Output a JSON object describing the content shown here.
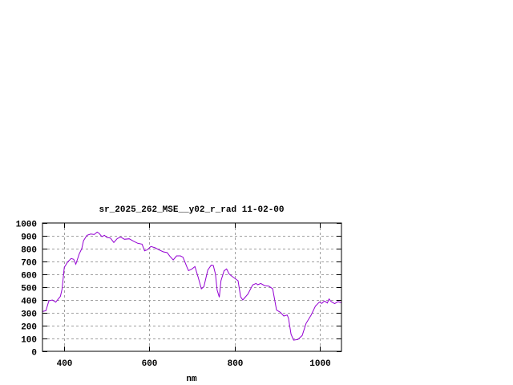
{
  "chart_data": {
    "type": "line",
    "title": "sr_2025_262_MSE__y02_r_rad 11-02-00",
    "xlabel": "nm",
    "ylabel": "",
    "xlim": [
      350,
      1050
    ],
    "ylim": [
      0,
      1000
    ],
    "xticks": [
      400,
      600,
      800,
      1000
    ],
    "yticks": [
      0,
      100,
      200,
      300,
      400,
      500,
      600,
      700,
      800,
      900,
      1000
    ],
    "grid": true,
    "line_color": "#9400d3",
    "series": [
      {
        "x": [
          350,
          358,
          365,
          373,
          381,
          392,
          396,
          401,
          409,
          417,
          423,
          428,
          436,
          442,
          446,
          454,
          463,
          471,
          478,
          482,
          489,
          495,
          501,
          509,
          517,
          525,
          533,
          542,
          553,
          563,
          573,
          583,
          589,
          595,
          604,
          614,
          623,
          633,
          642,
          648,
          656,
          664,
          673,
          679,
          688,
          692,
          700,
          707,
          715,
          722,
          728,
          737,
          745,
          750,
          755,
          759,
          764,
          768,
          775,
          781,
          787,
          795,
          808,
          814,
          819,
          831,
          842,
          850,
          854,
          861,
          870,
          880,
          889,
          898,
          907,
          915,
          923,
          926,
          932,
          938,
          948,
          958,
          967,
          979,
          989,
          998,
          1004,
          1010,
          1017,
          1021,
          1026,
          1034,
          1042,
          1050
        ],
        "y": [
          310,
          317,
          394,
          400,
          383,
          429,
          487,
          654,
          696,
          723,
          717,
          679,
          758,
          800,
          862,
          904,
          914,
          910,
          929,
          921,
          894,
          904,
          887,
          883,
          848,
          879,
          890,
          873,
          877,
          858,
          842,
          835,
          783,
          790,
          817,
          806,
          790,
          775,
          769,
          742,
          712,
          744,
          744,
          733,
          658,
          629,
          642,
          660,
          571,
          487,
          504,
          633,
          671,
          669,
          602,
          477,
          421,
          550,
          627,
          642,
          602,
          581,
          550,
          425,
          400,
          446,
          517,
          529,
          519,
          529,
          512,
          508,
          487,
          321,
          304,
          275,
          283,
          258,
          133,
          87,
          92,
          123,
          217,
          283,
          352,
          383,
          373,
          392,
          377,
          408,
          387,
          371,
          387,
          379
        ]
      }
    ]
  }
}
